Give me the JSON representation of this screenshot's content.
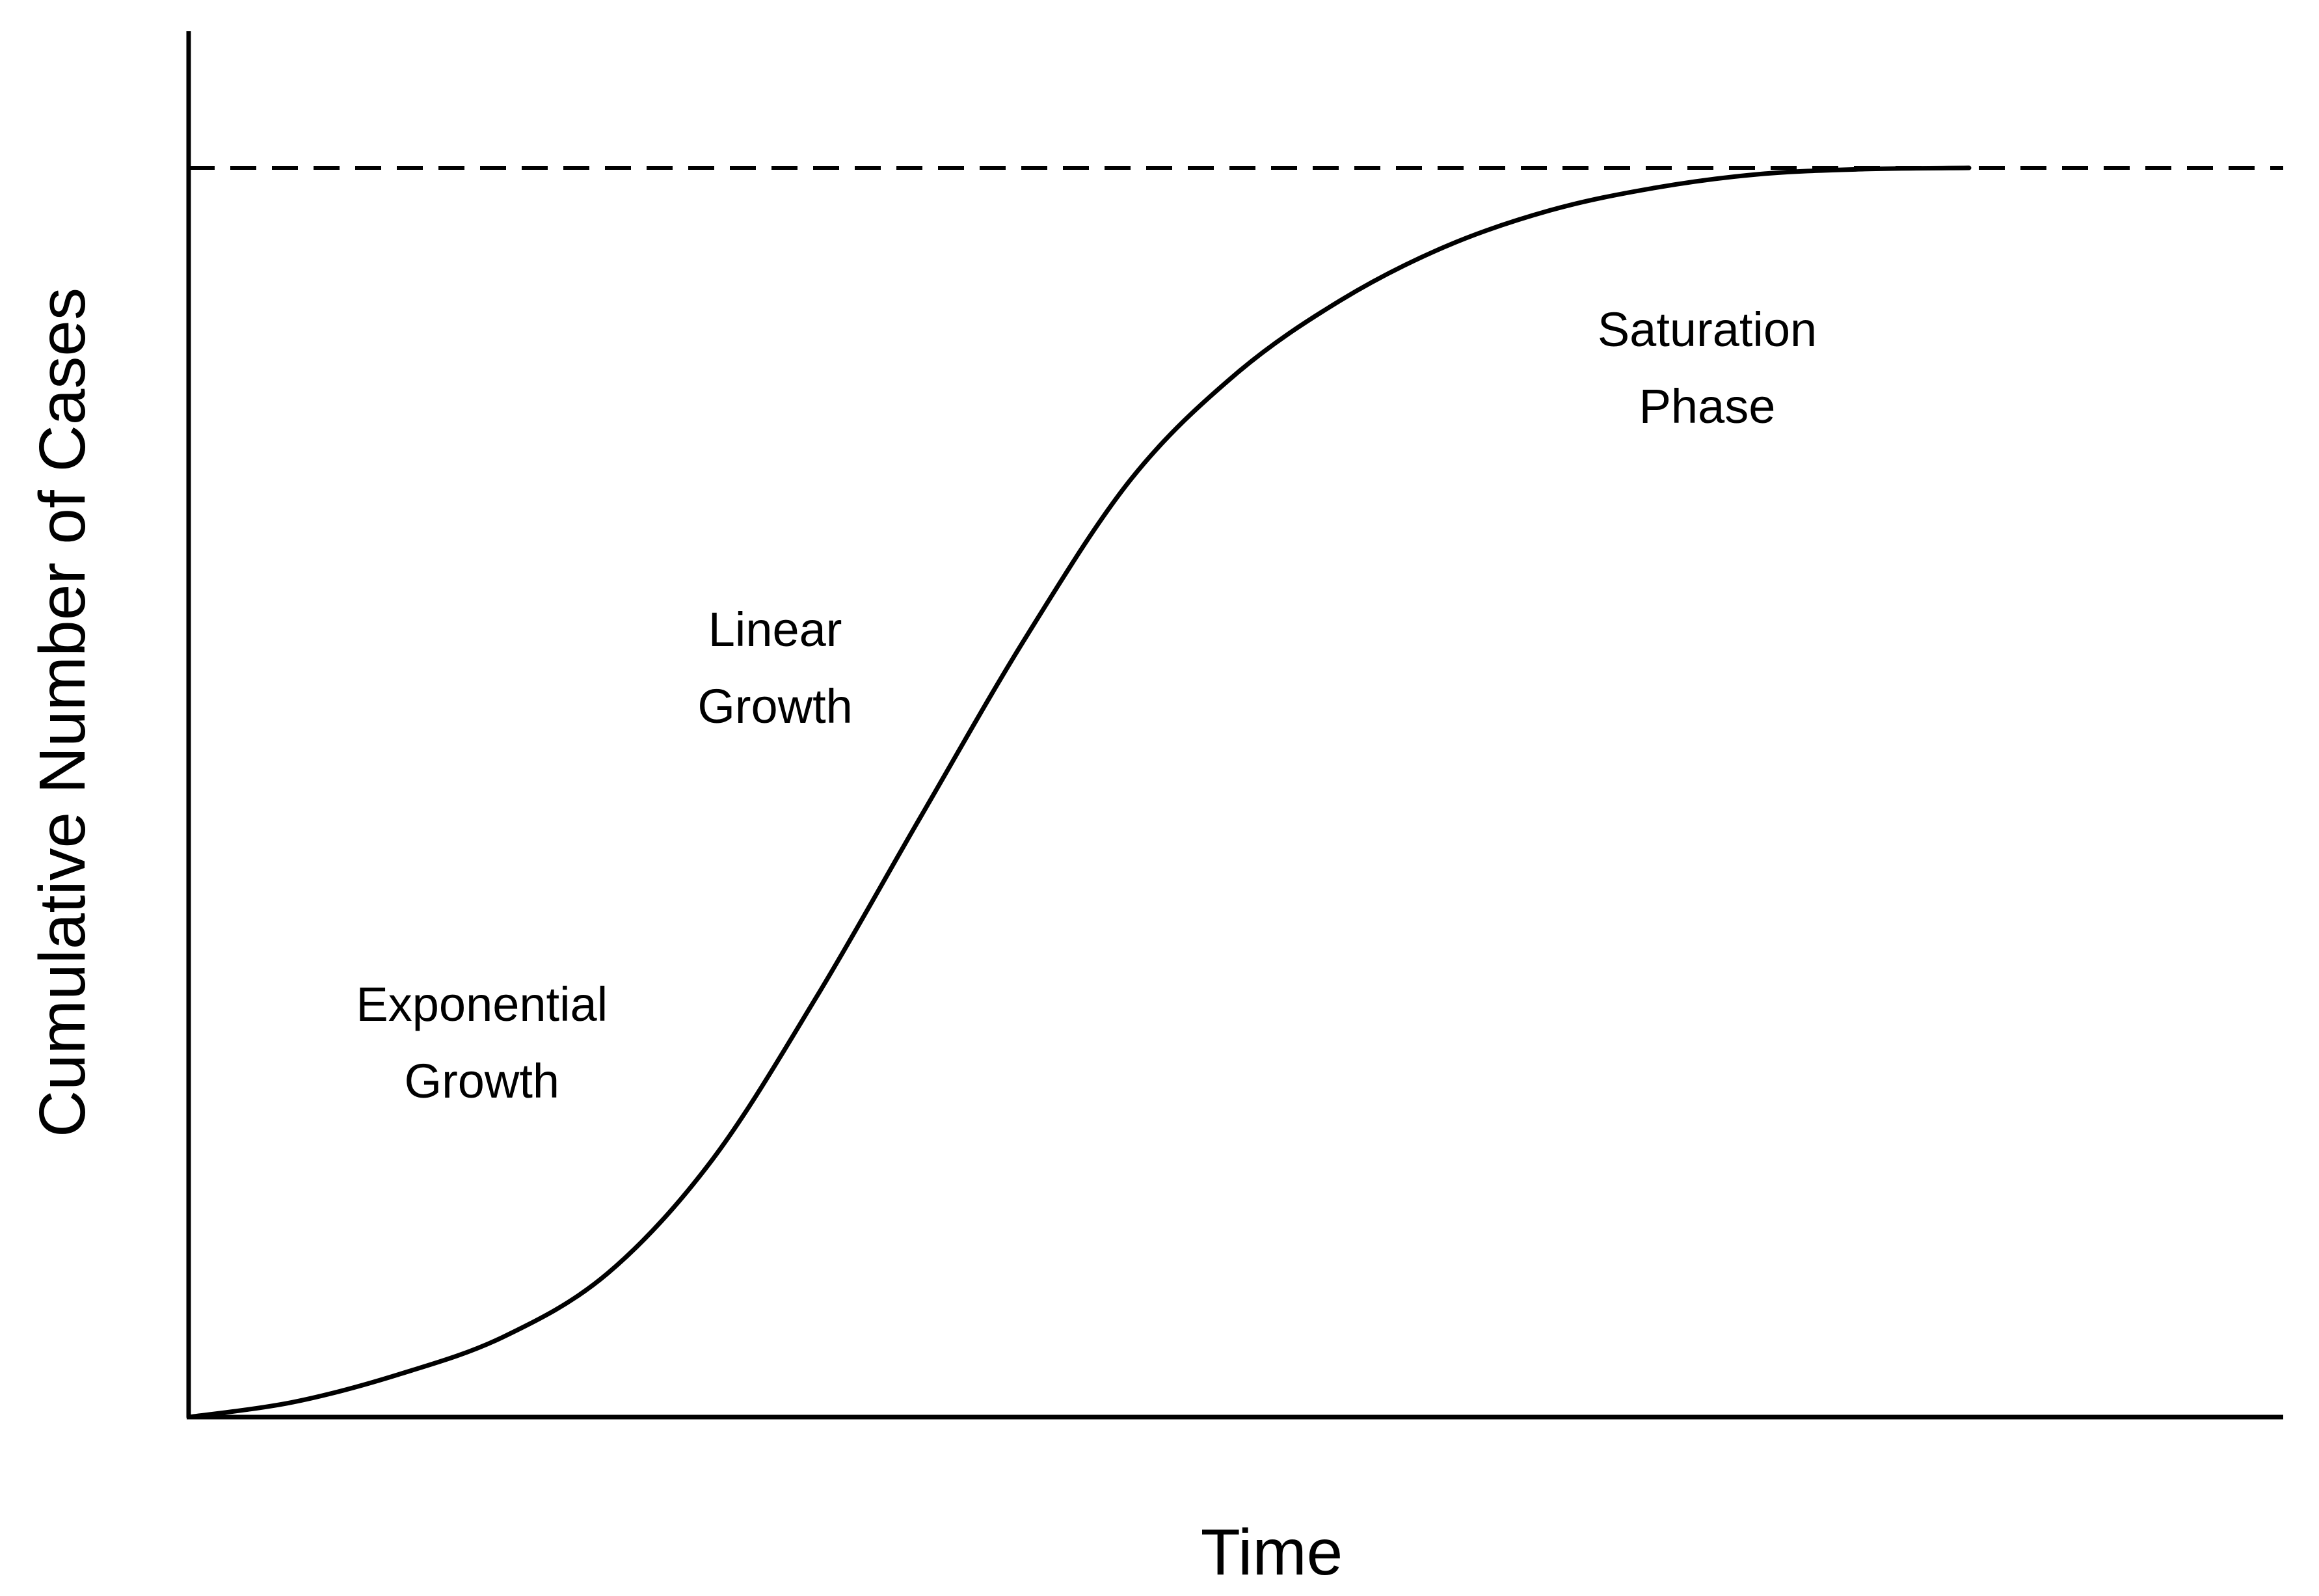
{
  "chart_data": {
    "type": "line",
    "title": "",
    "xlabel": "Time",
    "ylabel": "Cumulative Number of Cases",
    "x_ticks": [],
    "y_ticks": [],
    "grid": false,
    "xlim": [
      0,
      100
    ],
    "ylim": [
      0,
      1
    ],
    "series": [
      {
        "x": [
          0,
          5,
          10,
          15,
          20,
          25,
          30,
          35,
          40,
          45,
          50,
          55,
          60,
          65,
          70,
          75,
          80,
          85
        ],
        "y": [
          0.0,
          0.012,
          0.034,
          0.064,
          0.115,
          0.206,
          0.337,
          0.482,
          0.625,
          0.751,
          0.835,
          0.894,
          0.937,
          0.966,
          0.984,
          0.995,
          0.999,
          1.0
        ],
        "style": "solid"
      }
    ],
    "reference_lines": [
      {
        "orientation": "horizontal",
        "y": 1.0,
        "style": "dashed"
      }
    ],
    "annotations": [
      {
        "lines": [
          "Exponential",
          "Growth"
        ],
        "x": 14,
        "y": 0.3
      },
      {
        "lines": [
          "Linear",
          "Growth"
        ],
        "x": 28,
        "y": 0.6
      },
      {
        "lines": [
          "Saturation",
          "Phase"
        ],
        "x": 72.5,
        "y": 0.84
      }
    ]
  }
}
